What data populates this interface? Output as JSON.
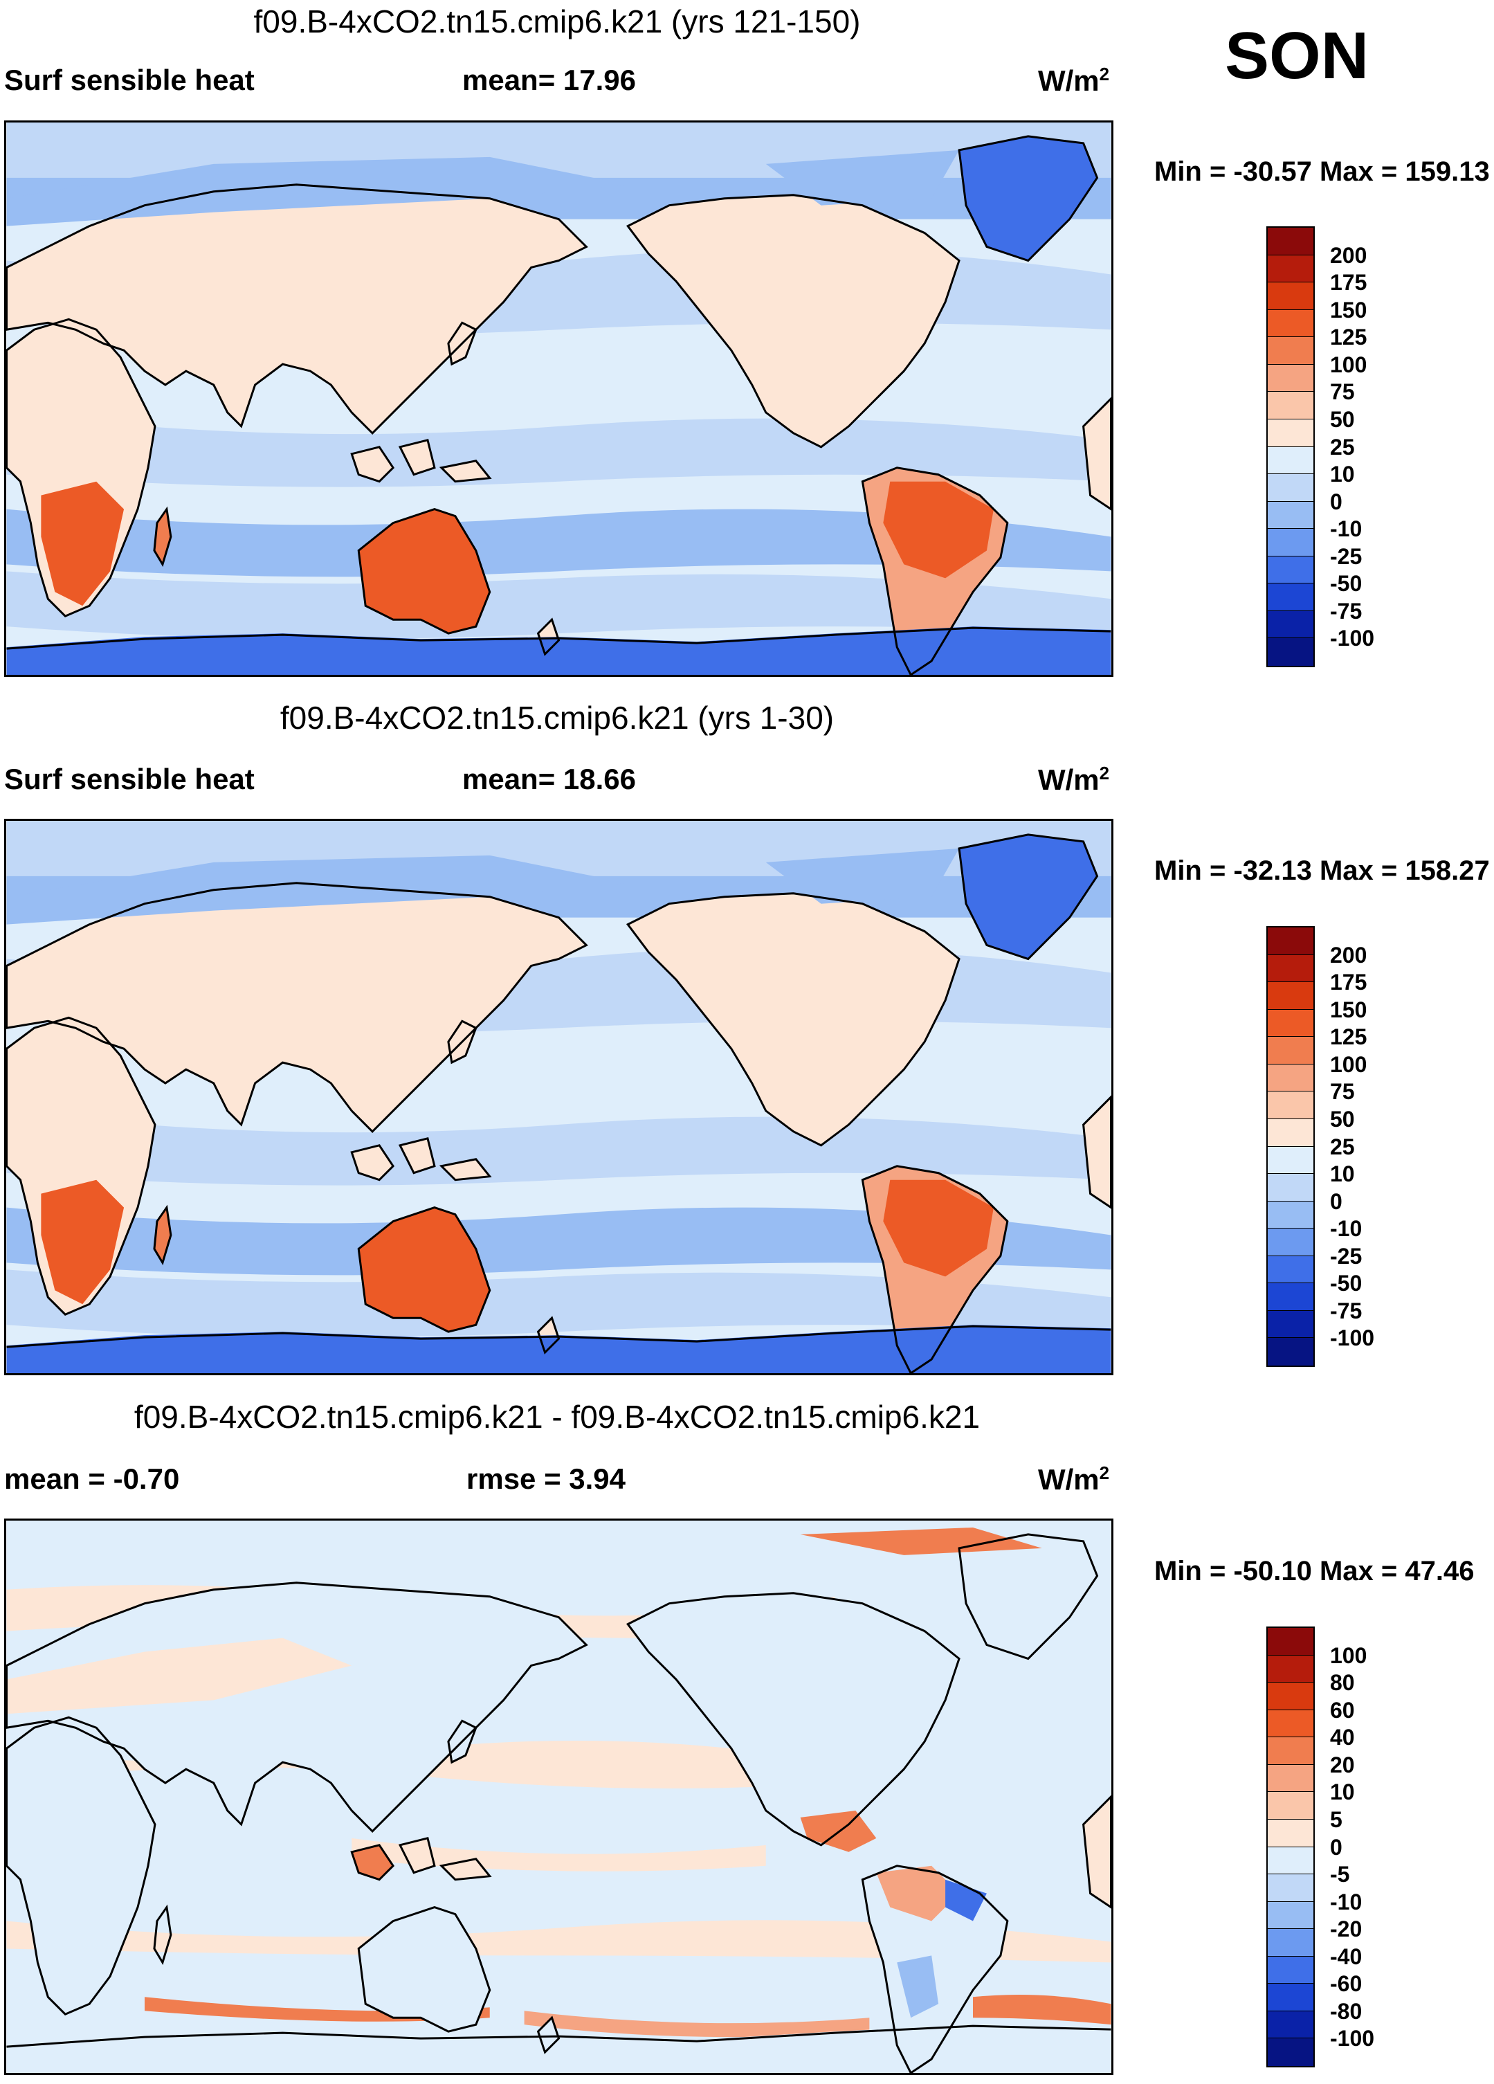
{
  "season": "SON",
  "panels": [
    {
      "title": "f09.B-4xCO2.tn15.cmip6.k21 (yrs 121-150)",
      "left_label": "Surf sensible heat",
      "center_label": "mean=  17.96",
      "units": "W/m",
      "units_exp": "2",
      "minmax": "Min = -30.57 Max = 159.13",
      "colorbar": {
        "labels": [
          "200",
          "175",
          "150",
          "125",
          "100",
          "75",
          "50",
          "25",
          "10",
          "0",
          "-10",
          "-25",
          "-50",
          "-75",
          "-100"
        ],
        "colors": [
          "#8b0a0a",
          "#b51c0c",
          "#d93a0f",
          "#ec5a26",
          "#f07d4f",
          "#f5a482",
          "#fac6aa",
          "#fde6d6",
          "#dfeefb",
          "#c1d8f7",
          "#98bdf3",
          "#6c9af0",
          "#3f6fe8",
          "#1c46d4",
          "#0a22a8",
          "#061483"
        ]
      },
      "map_style": "mean"
    },
    {
      "title": "f09.B-4xCO2.tn15.cmip6.k21 (yrs 1-30)",
      "left_label": "Surf sensible heat",
      "center_label": "mean=  18.66",
      "units": "W/m",
      "units_exp": "2",
      "minmax": "Min = -32.13 Max = 158.27",
      "colorbar": {
        "labels": [
          "200",
          "175",
          "150",
          "125",
          "100",
          "75",
          "50",
          "25",
          "10",
          "0",
          "-10",
          "-25",
          "-50",
          "-75",
          "-100"
        ],
        "colors": [
          "#8b0a0a",
          "#b51c0c",
          "#d93a0f",
          "#ec5a26",
          "#f07d4f",
          "#f5a482",
          "#fac6aa",
          "#fde6d6",
          "#dfeefb",
          "#c1d8f7",
          "#98bdf3",
          "#6c9af0",
          "#3f6fe8",
          "#1c46d4",
          "#0a22a8",
          "#061483"
        ]
      },
      "map_style": "mean"
    },
    {
      "title": "f09.B-4xCO2.tn15.cmip6.k21 - f09.B-4xCO2.tn15.cmip6.k21",
      "left_label": "mean =  -0.70",
      "center_label": "rmse =   3.94",
      "units": "W/m",
      "units_exp": "2",
      "minmax": "Min = -50.10 Max =  47.46",
      "colorbar": {
        "labels": [
          "100",
          "80",
          "60",
          "40",
          "20",
          "10",
          "5",
          "0",
          "-5",
          "-10",
          "-20",
          "-40",
          "-60",
          "-80",
          "-100"
        ],
        "colors": [
          "#8b0a0a",
          "#b51c0c",
          "#d93a0f",
          "#ec5a26",
          "#f07d4f",
          "#f5a482",
          "#fac6aa",
          "#fde6d6",
          "#dfeefb",
          "#c1d8f7",
          "#98bdf3",
          "#6c9af0",
          "#3f6fe8",
          "#1c46d4",
          "#0a22a8",
          "#061483"
        ]
      },
      "map_style": "diff"
    }
  ]
}
